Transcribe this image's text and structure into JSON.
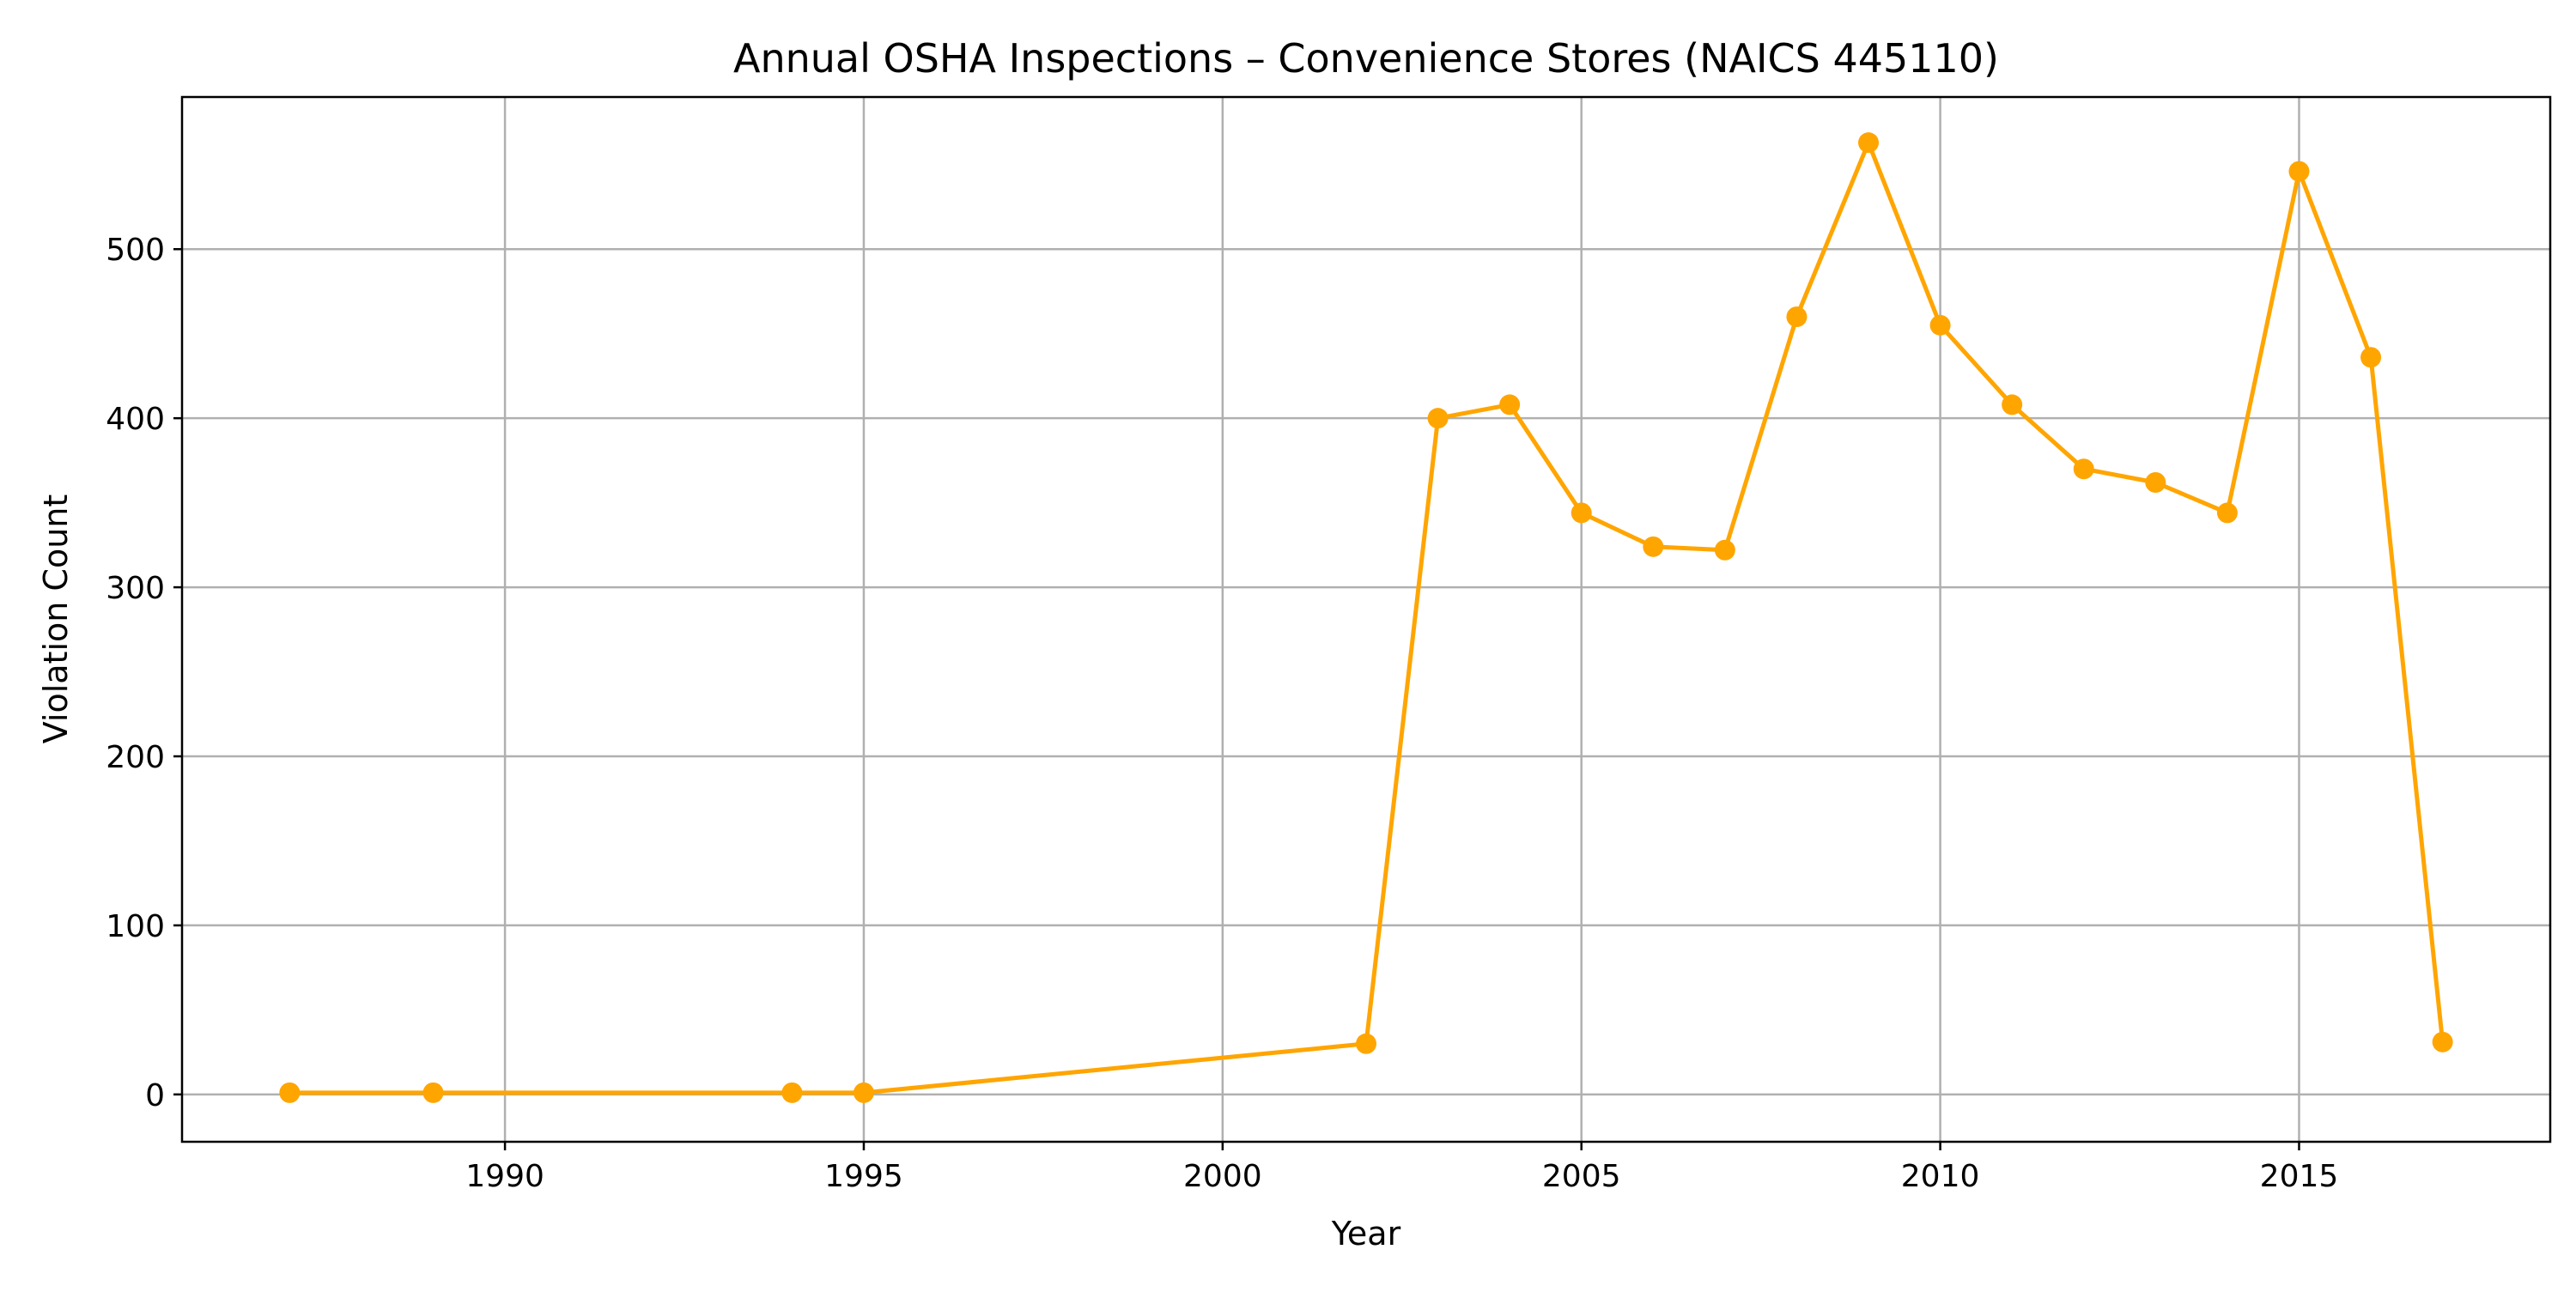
{
  "chart_data": {
    "type": "line",
    "title": "Annual OSHA Inspections – Convenience Stores (NAICS 445110)",
    "xlabel": "Year",
    "ylabel": "Violation Count",
    "xlim": [
      1985.5,
      2018.5
    ],
    "ylim": [
      -28,
      590
    ],
    "grid": true,
    "legend": "none",
    "x_ticks": [
      1990,
      1995,
      2000,
      2005,
      2010,
      2015
    ],
    "y_ticks": [
      0,
      100,
      200,
      300,
      400,
      500
    ],
    "series": [
      {
        "color": "#FFA500",
        "marker": "circle",
        "x": [
          1987,
          1989,
          1994,
          1995,
          2002,
          2003,
          2004,
          2005,
          2006,
          2007,
          2008,
          2009,
          2010,
          2011,
          2012,
          2013,
          2014,
          2015,
          2016,
          2017
        ],
        "y": [
          1,
          1,
          1,
          1,
          30,
          400,
          408,
          344,
          324,
          322,
          460,
          563,
          455,
          408,
          370,
          362,
          344,
          546,
          436,
          31
        ]
      }
    ]
  }
}
